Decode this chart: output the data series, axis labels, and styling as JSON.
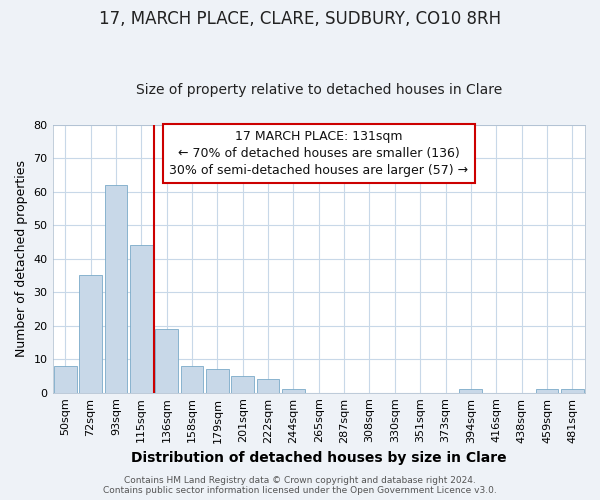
{
  "title": "17, MARCH PLACE, CLARE, SUDBURY, CO10 8RH",
  "subtitle": "Size of property relative to detached houses in Clare",
  "xlabel": "Distribution of detached houses by size in Clare",
  "ylabel": "Number of detached properties",
  "bar_color": "#c8d8e8",
  "bar_edge_color": "#7aaac8",
  "categories": [
    "50sqm",
    "72sqm",
    "93sqm",
    "115sqm",
    "136sqm",
    "158sqm",
    "179sqm",
    "201sqm",
    "222sqm",
    "244sqm",
    "265sqm",
    "287sqm",
    "308sqm",
    "330sqm",
    "351sqm",
    "373sqm",
    "394sqm",
    "416sqm",
    "438sqm",
    "459sqm",
    "481sqm"
  ],
  "values": [
    8,
    35,
    62,
    44,
    19,
    8,
    7,
    5,
    4,
    1,
    0,
    0,
    0,
    0,
    0,
    0,
    1,
    0,
    0,
    1,
    1
  ],
  "ylim": [
    0,
    80
  ],
  "yticks": [
    0,
    10,
    20,
    30,
    40,
    50,
    60,
    70,
    80
  ],
  "vline_index": 4,
  "vline_color": "#cc0000",
  "annotation_title": "17 MARCH PLACE: 131sqm",
  "annotation_line1": "← 70% of detached houses are smaller (136)",
  "annotation_line2": "30% of semi-detached houses are larger (57) →",
  "annotation_box_color": "#cc0000",
  "footer1": "Contains HM Land Registry data © Crown copyright and database right 2024.",
  "footer2": "Contains public sector information licensed under the Open Government Licence v3.0.",
  "background_color": "#eef2f7",
  "plot_bg_color": "#ffffff",
  "grid_color": "#c8d8e8",
  "title_fontsize": 12,
  "subtitle_fontsize": 10,
  "xlabel_fontsize": 10,
  "ylabel_fontsize": 9,
  "tick_fontsize": 8,
  "annotation_fontsize": 9,
  "footer_fontsize": 6.5
}
